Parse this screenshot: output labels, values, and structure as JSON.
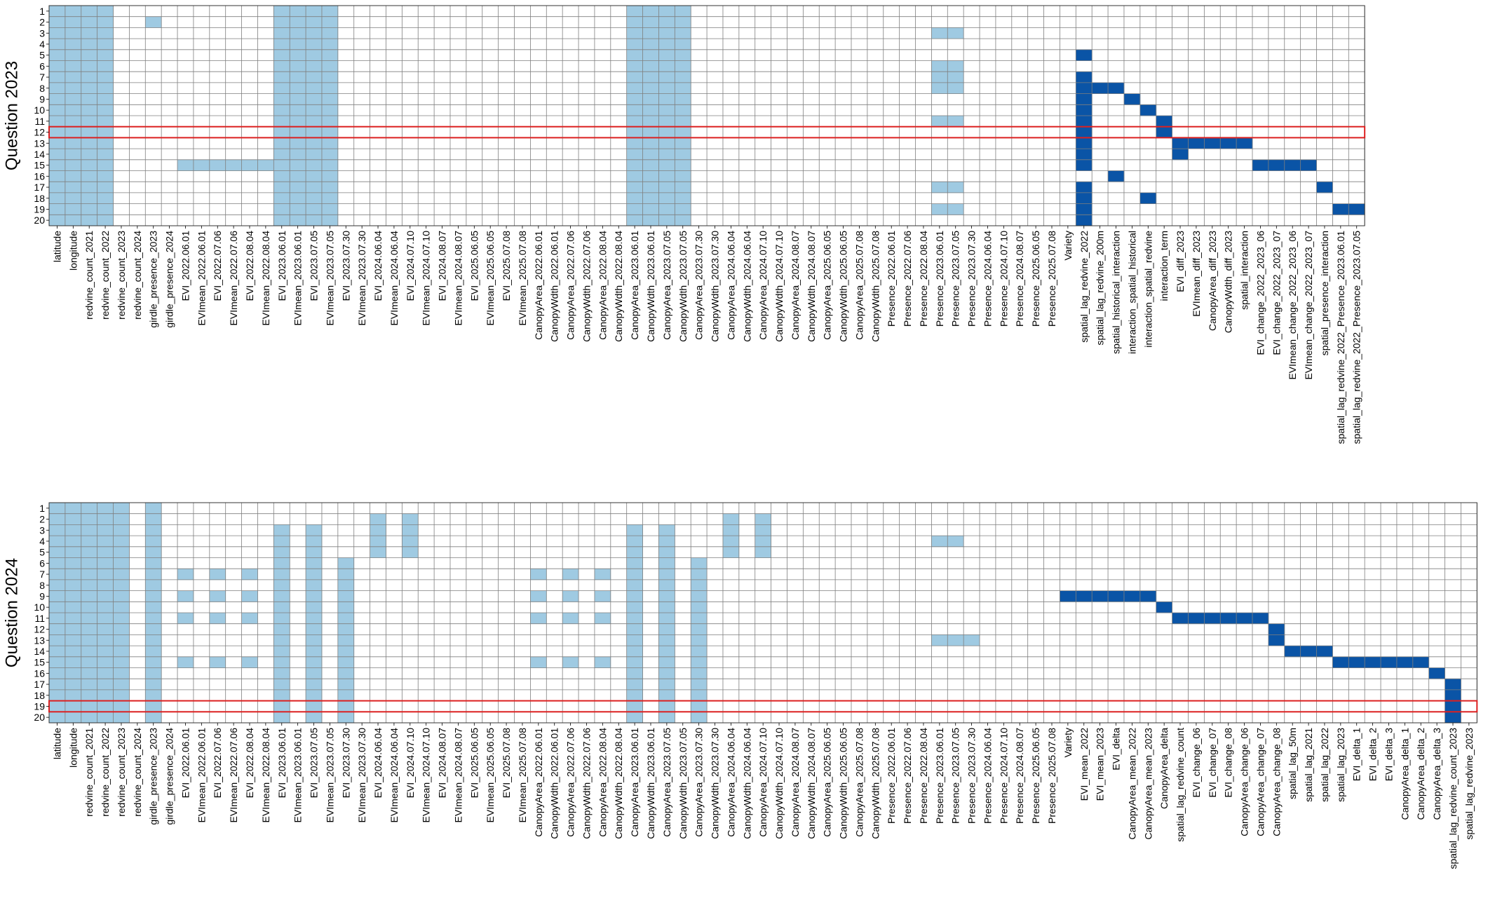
{
  "colors": {
    "light": "#9fcae2",
    "dark": "#0a54a6",
    "highlight": "#dc2020",
    "grid": "#7f7f7f"
  },
  "chart_data": [
    {
      "type": "heatmap",
      "ylabel": "Question 2023",
      "rows": [
        "1",
        "2",
        "3",
        "4",
        "5",
        "6",
        "7",
        "8",
        "9",
        "10",
        "11",
        "12",
        "13",
        "14",
        "15",
        "16",
        "17",
        "18",
        "19",
        "20"
      ],
      "highlight_row": 12,
      "columns": [
        "latitude",
        "longitude",
        "redvine_count_2021",
        "redvine_count_2022",
        "redvine_count_2023",
        "redvine_count_2024",
        "girdle_presence_2023",
        "girdle_presence_2024",
        "EVI_2022.06.01",
        "EVImean_2022.06.01",
        "EVI_2022.07.06",
        "EVImean_2022.07.06",
        "EVI_2022.08.04",
        "EVImean_2022.08.04",
        "EVI_2023.06.01",
        "EVImean_2023.06.01",
        "EVI_2023.07.05",
        "EVImean_2023.07.05",
        "EVI_2023.07.30",
        "EVImean_2023.07.30",
        "EVI_2024.06.04",
        "EVImean_2024.06.04",
        "EVI_2024.07.10",
        "EVImean_2024.07.10",
        "EVI_2024.08.07",
        "EVImean_2024.08.07",
        "EVI_2025.06.05",
        "EVImean_2025.06.05",
        "EVI_2025.07.08",
        "EVImean_2025.07.08",
        "CanopyArea_2022.06.01",
        "CanopyWdth_2022.06.01",
        "CanopyArea_2022.07.06",
        "CanopyWdth_2022.07.06",
        "CanopyArea_2022.08.04",
        "CanopyWdth_2022.08.04",
        "CanopyArea_2023.06.01",
        "CanopyWdth_2023.06.01",
        "CanopyArea_2023.07.05",
        "CanopyWdth_2023.07.05",
        "CanopyArea_2023.07.30",
        "CanopyWdth_2023.07.30",
        "CanopyArea_2024.06.04",
        "CanopyWdth_2024.06.04",
        "CanopyArea_2024.07.10",
        "CanopyWdth_2024.07.10",
        "CanopyArea_2024.08.07",
        "CanopyWdth_2024.08.07",
        "CanopyArea_2025.06.05",
        "CanopyWdth_2025.06.05",
        "CanopyArea_2025.07.08",
        "CanopyWdth_2025.07.08",
        "Presence_2022.06.01",
        "Presence_2022.07.06",
        "Presence_2022.08.04",
        "Presence_2023.06.01",
        "Presence_2023.07.05",
        "Presence_2023.07.30",
        "Presence_2024.06.04",
        "Presence_2024.07.10",
        "Presence_2024.08.07",
        "Presence_2025.06.05",
        "Presence_2025.07.08",
        "Variety",
        "spatial_lag_redvine_2022",
        "spatial_lag_redvine_200m",
        "spatial_historical_interaction",
        "interaction_spatial_historical",
        "interaction_spatial_redvine",
        "interaction_term",
        "EVI_diff_2023",
        "EVImean_diff_2023",
        "CanopyArea_diff_2023",
        "CanopyWdth_diff_2023",
        "spatial_interaction",
        "EVI_change_2022_2023_06",
        "EVI_change_2022_2023_07",
        "EVImean_change_2022_2023_06",
        "EVImean_change_2022_2023_07",
        "spatial_presence_interaction",
        "spatial_lag_redvine_2022_Presence_2023.06.01",
        "spatial_lag_redvine_2022_Presence_2023.07.05"
      ],
      "light_cells": [
        {
          "cols": [
            0,
            1,
            2,
            3,
            14,
            15,
            16,
            17,
            36,
            37,
            38,
            39
          ],
          "rows": "1-20"
        },
        {
          "cols": [
            6
          ],
          "rows": "2"
        },
        {
          "cols": [
            8,
            9,
            10,
            11,
            12,
            13
          ],
          "rows": "15"
        },
        {
          "cols": [
            55,
            56
          ],
          "rows": "3,6,7,8,11,17,19"
        }
      ],
      "dark_cells": [
        {
          "cols": [
            64
          ],
          "rows": "5,7-15,17-20"
        },
        {
          "cols": [
            65,
            66
          ],
          "rows": "8"
        },
        {
          "cols": [
            67
          ],
          "rows": "9"
        },
        {
          "cols": [
            68
          ],
          "rows": "10"
        },
        {
          "cols": [
            69
          ],
          "rows": "11-12"
        },
        {
          "cols": [
            70
          ],
          "rows": "13-14"
        },
        {
          "cols": [
            71,
            72,
            73,
            74
          ],
          "rows": "13"
        },
        {
          "cols": [
            75,
            76,
            77,
            78
          ],
          "rows": "15"
        },
        {
          "cols": [
            66
          ],
          "rows": "16"
        },
        {
          "cols": [
            79
          ],
          "rows": "17"
        },
        {
          "cols": [
            68
          ],
          "rows": "18"
        },
        {
          "cols": [
            80,
            81
          ],
          "rows": "19"
        }
      ]
    },
    {
      "type": "heatmap",
      "ylabel": "Question 2024",
      "rows": [
        "1",
        "2",
        "3",
        "4",
        "5",
        "6",
        "7",
        "8",
        "9",
        "10",
        "11",
        "12",
        "13",
        "14",
        "15",
        "16",
        "17",
        "18",
        "19",
        "20"
      ],
      "highlight_row": 19,
      "columns": [
        "latitude",
        "longitude",
        "redvine_count_2021",
        "redvine_count_2022",
        "redvine_count_2023",
        "redvine_count_2024",
        "girdle_presence_2023",
        "girdle_presence_2024",
        "EVI_2022.06.01",
        "EVImean_2022.06.01",
        "EVI_2022.07.06",
        "EVImean_2022.07.06",
        "EVI_2022.08.04",
        "EVImean_2022.08.04",
        "EVI_2023.06.01",
        "EVImean_2023.06.01",
        "EVI_2023.07.05",
        "EVImean_2023.07.05",
        "EVI_2023.07.30",
        "EVImean_2023.07.30",
        "EVI_2024.06.04",
        "EVImean_2024.06.04",
        "EVI_2024.07.10",
        "EVImean_2024.07.10",
        "EVI_2024.08.07",
        "EVImean_2024.08.07",
        "EVI_2025.06.05",
        "EVImean_2025.06.05",
        "EVI_2025.07.08",
        "EVImean_2025.07.08",
        "CanopyArea_2022.06.01",
        "CanopyWdth_2022.06.01",
        "CanopyArea_2022.07.06",
        "CanopyWdth_2022.07.06",
        "CanopyArea_2022.08.04",
        "CanopyWdth_2022.08.04",
        "CanopyArea_2023.06.01",
        "CanopyWdth_2023.06.01",
        "CanopyArea_2023.07.05",
        "CanopyWdth_2023.07.05",
        "CanopyArea_2023.07.30",
        "CanopyWdth_2023.07.30",
        "CanopyArea_2024.06.04",
        "CanopyWdth_2024.06.04",
        "CanopyArea_2024.07.10",
        "CanopyWdth_2024.07.10",
        "CanopyArea_2024.08.07",
        "CanopyWdth_2024.08.07",
        "CanopyArea_2025.06.05",
        "CanopyWdth_2025.06.05",
        "CanopyArea_2025.07.08",
        "CanopyWdth_2025.07.08",
        "Presence_2022.06.01",
        "Presence_2022.07.06",
        "Presence_2022.08.04",
        "Presence_2023.06.01",
        "Presence_2023.07.05",
        "Presence_2023.07.30",
        "Presence_2024.06.04",
        "Presence_2024.07.10",
        "Presence_2024.08.07",
        "Presence_2025.06.05",
        "Presence_2025.07.08",
        "Variety",
        "EVI_mean_2022",
        "EVI_mean_2023",
        "EVI_delta",
        "CanopyArea_mean_2022",
        "CanopyArea_mean_2023",
        "CanopyArea_delta",
        "spatial_lag_redvine_count",
        "EVI_change_06",
        "EVI_change_07",
        "EVI_change_08",
        "CanopyArea_change_06",
        "CanopyArea_change_07",
        "CanopyArea_change_08",
        "spatial_lag_50m",
        "spatial_lag_2021",
        "spatial_lag_2022",
        "spatial_lag_2023",
        "EVI_delta_1",
        "EVI_delta_2",
        "EVI_delta_3",
        "CanopyArea_delta_1",
        "CanopyArea_delta_2",
        "CanopyArea_delta_3",
        "spatial_lag_redvine_count_2023",
        "spatial_lag_redvine_2023"
      ],
      "light_cells": [
        {
          "cols": [
            0,
            1,
            2,
            3,
            4,
            6
          ],
          "rows": "1-20"
        },
        {
          "cols": [
            14,
            16,
            36,
            38
          ],
          "rows": "3-20"
        },
        {
          "cols": [
            18,
            40
          ],
          "rows": "6-20"
        },
        {
          "cols": [
            20,
            22,
            42,
            44
          ],
          "rows": "2-5"
        },
        {
          "cols": [
            8,
            10,
            12,
            30,
            32,
            34
          ],
          "rows": "7,9,11,15"
        },
        {
          "cols": [
            55,
            56
          ],
          "rows": "4"
        },
        {
          "cols": [
            55,
            56,
            57
          ],
          "rows": "13"
        }
      ],
      "dark_cells": [
        {
          "cols": [
            63,
            64,
            65,
            66,
            67,
            68
          ],
          "rows": "9"
        },
        {
          "cols": [
            69
          ],
          "rows": "10"
        },
        {
          "cols": [
            70,
            71,
            72,
            73,
            74,
            75
          ],
          "rows": "11"
        },
        {
          "cols": [
            76
          ],
          "rows": "12-13"
        },
        {
          "cols": [
            77,
            78,
            79
          ],
          "rows": "14"
        },
        {
          "cols": [
            80,
            81,
            82,
            83,
            84,
            85
          ],
          "rows": "15"
        },
        {
          "cols": [
            86
          ],
          "rows": "16"
        },
        {
          "cols": [
            87
          ],
          "rows": "17-20"
        }
      ]
    }
  ]
}
